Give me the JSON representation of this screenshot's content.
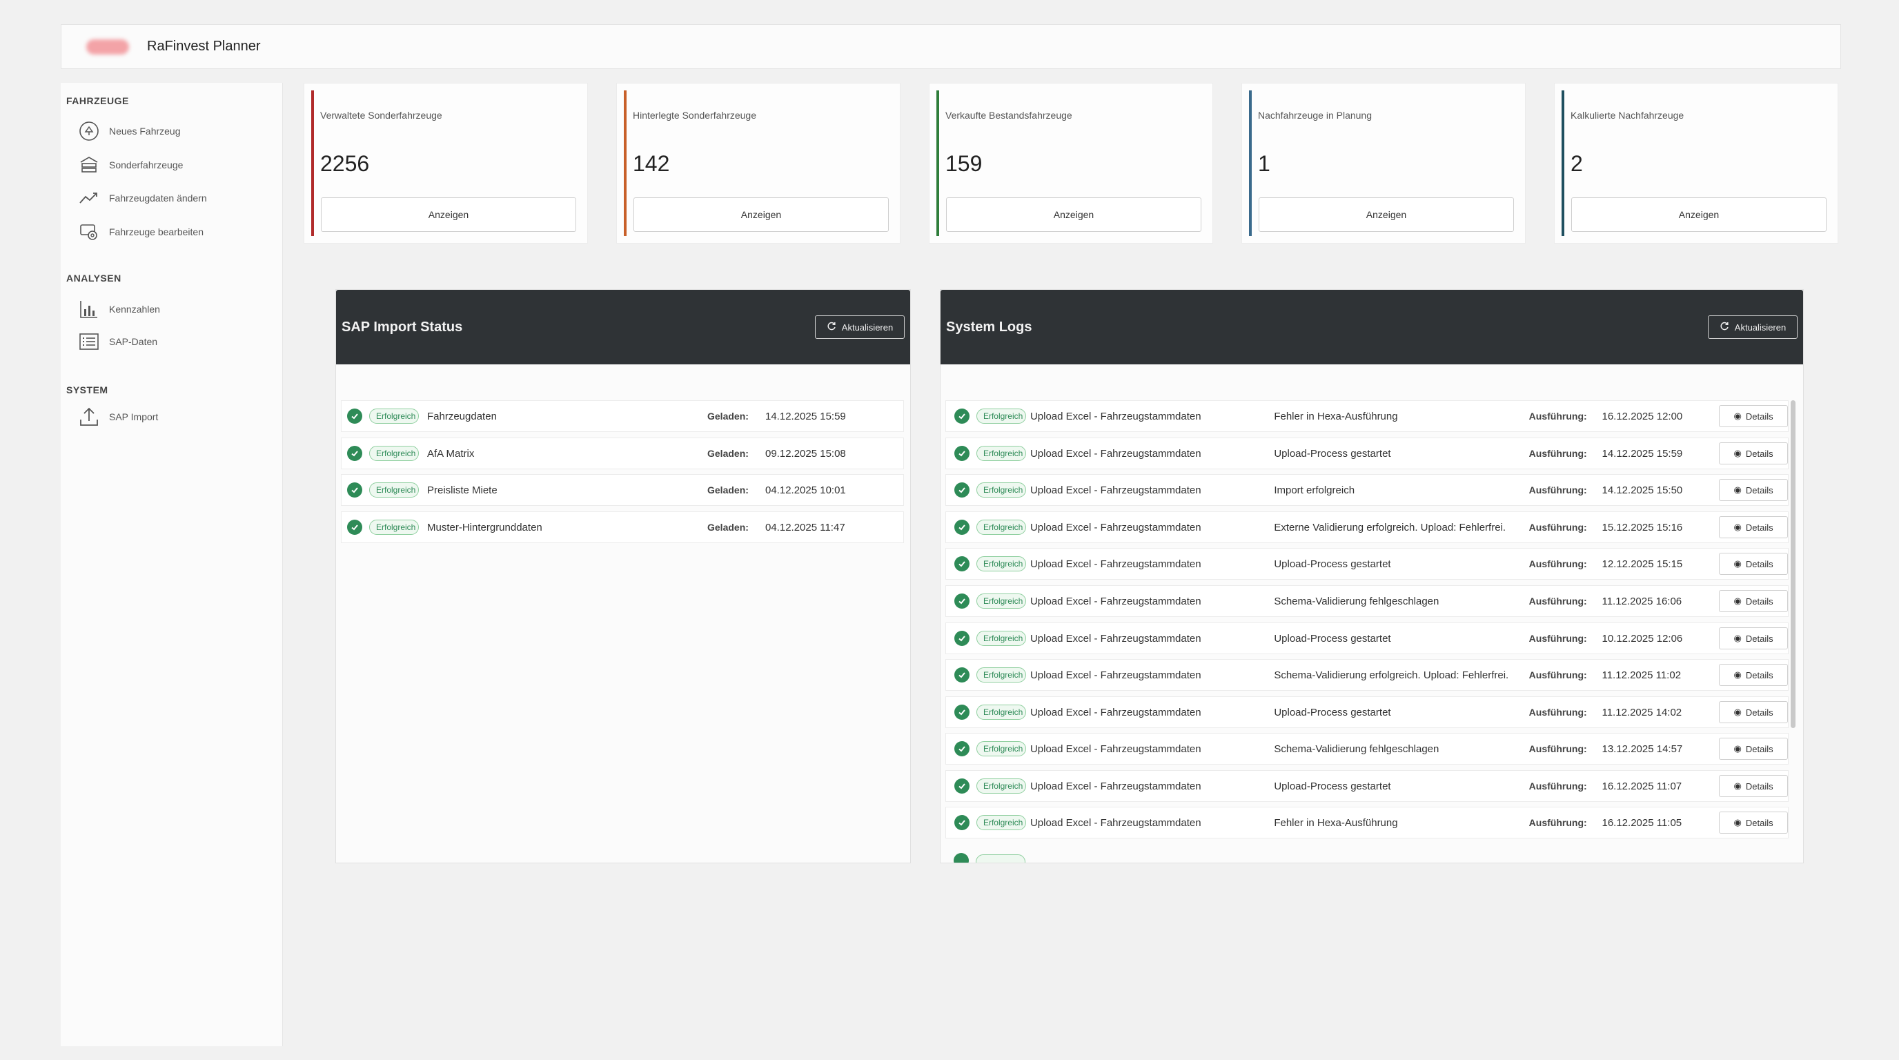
{
  "app": {
    "title": "RaFinvest Planner"
  },
  "sidebar": {
    "sections": [
      {
        "title": "Fahrzeuge",
        "items": [
          {
            "label": "Neues Fahrzeug",
            "icon": "plus-circle-icon"
          },
          {
            "label": "Sonderfahrzeuge",
            "icon": "car-stack-icon"
          },
          {
            "label": "Fahrzeugdaten ändern",
            "icon": "trend-line-icon"
          },
          {
            "label": "Fahrzeuge bearbeiten",
            "icon": "gear-car-icon"
          }
        ]
      },
      {
        "title": "Analysen",
        "items": [
          {
            "label": "Kennzahlen",
            "icon": "bar-chart-icon"
          },
          {
            "label": "SAP-Daten",
            "icon": "list-icon"
          }
        ]
      },
      {
        "title": "System",
        "items": [
          {
            "label": "SAP Import",
            "icon": "upload-icon"
          }
        ]
      }
    ]
  },
  "cards": [
    {
      "title": "Verwaltete Sonderfahrzeuge",
      "value": "2256",
      "button": "Anzeigen",
      "color": "#b02a2a"
    },
    {
      "title": "Hinterlegte Sonderfahrzeuge",
      "value": "142",
      "button": "Anzeigen",
      "color": "#c8602a"
    },
    {
      "title": "Verkaufte Bestandsfahrzeuge",
      "value": "159",
      "button": "Anzeigen",
      "color": "#2e7d3a"
    },
    {
      "title": "Nachfahrzeuge in Planung",
      "value": "1",
      "button": "Anzeigen",
      "color": "#3a6a8c"
    },
    {
      "title": "Kalkulierte Nachfahrzeuge",
      "value": "2",
      "button": "Anzeigen",
      "color": "#1f4f5f"
    }
  ],
  "sap_panel": {
    "title": "SAP Import Status",
    "refresh": "Aktualisieren",
    "rows": [
      {
        "status": "Erfolgreich",
        "name": "Fahrzeugdaten",
        "label": "Geladen:",
        "date": "14.12.2025 15:59"
      },
      {
        "status": "Erfolgreich",
        "name": "AfA Matrix",
        "label": "Geladen:",
        "date": "09.12.2025 15:08"
      },
      {
        "status": "Erfolgreich",
        "name": "Preisliste Miete",
        "label": "Geladen:",
        "date": "04.12.2025 10:01"
      },
      {
        "status": "Erfolgreich",
        "name": "Muster-Hintergrunddaten",
        "label": "Geladen:",
        "date": "04.12.2025 11:47"
      }
    ]
  },
  "logs_panel": {
    "title": "System Logs",
    "refresh": "Aktualisieren",
    "rows": [
      {
        "status": "Erfolgreich",
        "job": "Upload Excel - Fahrzeugstammdaten",
        "msg": "Fehler in Hexa-Ausführung",
        "label": "Ausführung:",
        "date": "16.12.2025 12:00",
        "btn": "Details"
      },
      {
        "status": "Erfolgreich",
        "job": "Upload Excel - Fahrzeugstammdaten",
        "msg": "Upload-Process gestartet",
        "label": "Ausführung:",
        "date": "14.12.2025 15:59",
        "btn": "Details"
      },
      {
        "status": "Erfolgreich",
        "job": "Upload Excel - Fahrzeugstammdaten",
        "msg": "Import erfolgreich",
        "label": "Ausführung:",
        "date": "14.12.2025 15:50",
        "btn": "Details"
      },
      {
        "status": "Erfolgreich",
        "job": "Upload Excel - Fahrzeugstammdaten",
        "msg": "Externe Validierung erfolgreich. Upload: Fehlerfrei.",
        "label": "Ausführung:",
        "date": "15.12.2025 15:16",
        "btn": "Details"
      },
      {
        "status": "Erfolgreich",
        "job": "Upload Excel - Fahrzeugstammdaten",
        "msg": "Upload-Process gestartet",
        "label": "Ausführung:",
        "date": "12.12.2025 15:15",
        "btn": "Details"
      },
      {
        "status": "Erfolgreich",
        "job": "Upload Excel - Fahrzeugstammdaten",
        "msg": "Schema-Validierung fehlgeschlagen",
        "label": "Ausführung:",
        "date": "11.12.2025 16:06",
        "btn": "Details"
      },
      {
        "status": "Erfolgreich",
        "job": "Upload Excel - Fahrzeugstammdaten",
        "msg": "Upload-Process gestartet",
        "label": "Ausführung:",
        "date": "10.12.2025 12:06",
        "btn": "Details"
      },
      {
        "status": "Erfolgreich",
        "job": "Upload Excel - Fahrzeugstammdaten",
        "msg": "Schema-Validierung erfolgreich. Upload: Fehlerfrei.",
        "label": "Ausführung:",
        "date": "11.12.2025 11:02",
        "btn": "Details"
      },
      {
        "status": "Erfolgreich",
        "job": "Upload Excel - Fahrzeugstammdaten",
        "msg": "Upload-Process gestartet",
        "label": "Ausführung:",
        "date": "11.12.2025 14:02",
        "btn": "Details"
      },
      {
        "status": "Erfolgreich",
        "job": "Upload Excel - Fahrzeugstammdaten",
        "msg": "Schema-Validierung fehlgeschlagen",
        "label": "Ausführung:",
        "date": "13.12.2025 14:57",
        "btn": "Details"
      },
      {
        "status": "Erfolgreich",
        "job": "Upload Excel - Fahrzeugstammdaten",
        "msg": "Upload-Process gestartet",
        "label": "Ausführung:",
        "date": "16.12.2025 11:07",
        "btn": "Details"
      },
      {
        "status": "Erfolgreich",
        "job": "Upload Excel - Fahrzeugstammdaten",
        "msg": "Fehler in Hexa-Ausführung",
        "label": "Ausführung:",
        "date": "16.12.2025 11:05",
        "btn": "Details"
      }
    ]
  }
}
